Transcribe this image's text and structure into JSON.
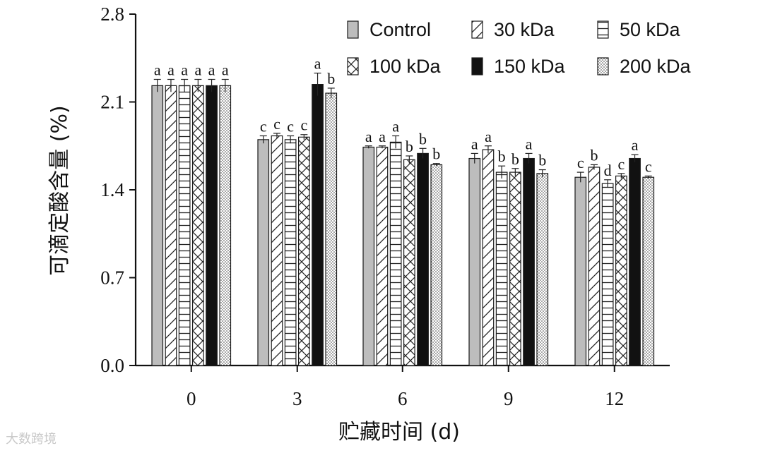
{
  "chart_data": {
    "type": "bar",
    "title": "",
    "xlabel": "贮藏时间 (d)",
    "ylabel": "可滴定酸含量 (%)",
    "ylim": [
      0,
      2.8
    ],
    "yticks": [
      "0.0",
      "0.7",
      "1.4",
      "2.1",
      "2.8"
    ],
    "categories": [
      "0",
      "3",
      "6",
      "9",
      "12"
    ],
    "legend_position": "top-right",
    "series": [
      {
        "name": "Control",
        "pattern": "solid-gray",
        "values": [
          2.23,
          1.8,
          1.74,
          1.65,
          1.5
        ],
        "errors": [
          0.05,
          0.03,
          0.01,
          0.04,
          0.04
        ],
        "labels": [
          "a",
          "c",
          "a",
          "a",
          "c"
        ]
      },
      {
        "name": "30 kDa",
        "pattern": "diagonal",
        "values": [
          2.23,
          1.83,
          1.74,
          1.72,
          1.58
        ],
        "errors": [
          0.05,
          0.02,
          0.01,
          0.03,
          0.02
        ],
        "labels": [
          "a",
          "c",
          "a",
          "a",
          "b"
        ]
      },
      {
        "name": "50 kDa",
        "pattern": "horizontal",
        "values": [
          2.23,
          1.8,
          1.78,
          1.54,
          1.45
        ],
        "errors": [
          0.05,
          0.03,
          0.05,
          0.05,
          0.03
        ],
        "labels": [
          "a",
          "c",
          "a",
          "b",
          "d"
        ]
      },
      {
        "name": "100 kDa",
        "pattern": "cross",
        "values": [
          2.23,
          1.82,
          1.64,
          1.54,
          1.51
        ],
        "errors": [
          0.05,
          0.02,
          0.03,
          0.03,
          0.02
        ],
        "labels": [
          "a",
          "c",
          "b",
          "b",
          "c"
        ]
      },
      {
        "name": "150 kDa",
        "pattern": "solid-black",
        "values": [
          2.23,
          2.24,
          1.69,
          1.65,
          1.65
        ],
        "errors": [
          0.05,
          0.09,
          0.04,
          0.04,
          0.03
        ],
        "labels": [
          "a",
          "a",
          "b",
          "a",
          "a"
        ]
      },
      {
        "name": "200 kDa",
        "pattern": "dotted",
        "values": [
          2.23,
          2.17,
          1.6,
          1.53,
          1.5
        ],
        "errors": [
          0.05,
          0.04,
          0.01,
          0.03,
          0.01
        ],
        "labels": [
          "a",
          "b",
          "b",
          "b",
          "c"
        ]
      }
    ],
    "colors": {
      "control": "#bdbdbd",
      "black": "#111111",
      "stroke": "#1a1a1a"
    }
  },
  "watermark": "大数跨境"
}
